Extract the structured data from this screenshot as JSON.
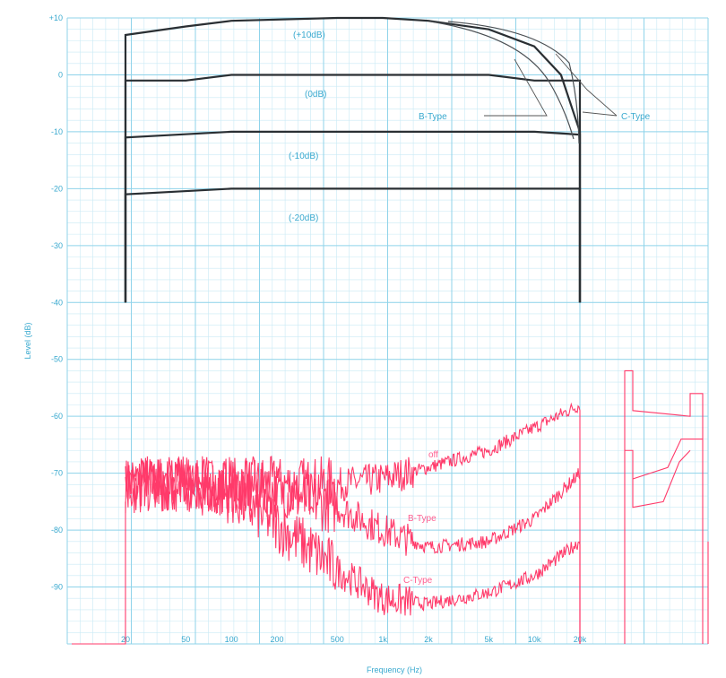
{
  "chart_data": {
    "type": "line",
    "xlabel": "Frequency (Hz)",
    "ylabel": "Level (dB)",
    "x_tick_labels": [
      "20",
      "50",
      "100",
      "200",
      "500",
      "1k",
      "2k",
      "5k",
      "10k",
      "20k"
    ],
    "x_values": [
      20,
      50,
      100,
      200,
      500,
      1000,
      2000,
      5000,
      10000,
      20000
    ],
    "y_tick_labels": [
      "+10",
      "0",
      "-10",
      "-20",
      "-30",
      "-40",
      "-50",
      "-60",
      "-70",
      "-80",
      "-90"
    ],
    "ylim": [
      -100,
      10
    ],
    "grid": true,
    "frequency_response": [
      {
        "name": "(+10dB)",
        "x": [
          20,
          50,
          100,
          500,
          1000,
          2000,
          5000,
          10000,
          15000,
          20000
        ],
        "y": [
          7,
          8.5,
          9.5,
          10,
          10,
          9.5,
          8,
          5,
          0,
          -10
        ]
      },
      {
        "name": "(0dB)",
        "x": [
          20,
          50,
          100,
          1000,
          5000,
          10000,
          15000,
          20000
        ],
        "y": [
          -1,
          -1,
          0,
          0,
          0,
          -1,
          -1,
          -1
        ]
      },
      {
        "name": "(-10dB)",
        "x": [
          20,
          100,
          1000,
          10000,
          20000
        ],
        "y": [
          -11,
          -10,
          -10,
          -10,
          -10.5
        ]
      },
      {
        "name": "(-20dB)",
        "x": [
          20,
          100,
          1000,
          10000,
          20000
        ],
        "y": [
          -21,
          -20,
          -20,
          -20,
          -20
        ]
      }
    ],
    "annotations": [
      "(+10dB)",
      "(0dB)",
      "(-10dB)",
      "(-20dB)",
      "B-Type",
      "C-Type"
    ],
    "noise_series": [
      {
        "name": "off",
        "x": [
          20,
          50,
          100,
          200,
          500,
          1000,
          2000,
          5000,
          10000,
          20000
        ],
        "y": [
          -72,
          -72,
          -72,
          -72,
          -72,
          -71,
          -69,
          -66,
          -62,
          -58
        ]
      },
      {
        "name": "B-Type",
        "x": [
          20,
          50,
          100,
          200,
          500,
          1000,
          2000,
          5000,
          10000,
          20000
        ],
        "y": [
          -72,
          -72,
          -72,
          -73,
          -76,
          -80,
          -83,
          -82,
          -78,
          -70
        ]
      },
      {
        "name": "C-Type",
        "x": [
          20,
          50,
          100,
          200,
          500,
          1000,
          2000,
          5000,
          10000,
          20000
        ],
        "y": [
          -72,
          -72,
          -74,
          -79,
          -87,
          -92,
          -93,
          -91,
          -88,
          -82
        ]
      }
    ]
  }
}
